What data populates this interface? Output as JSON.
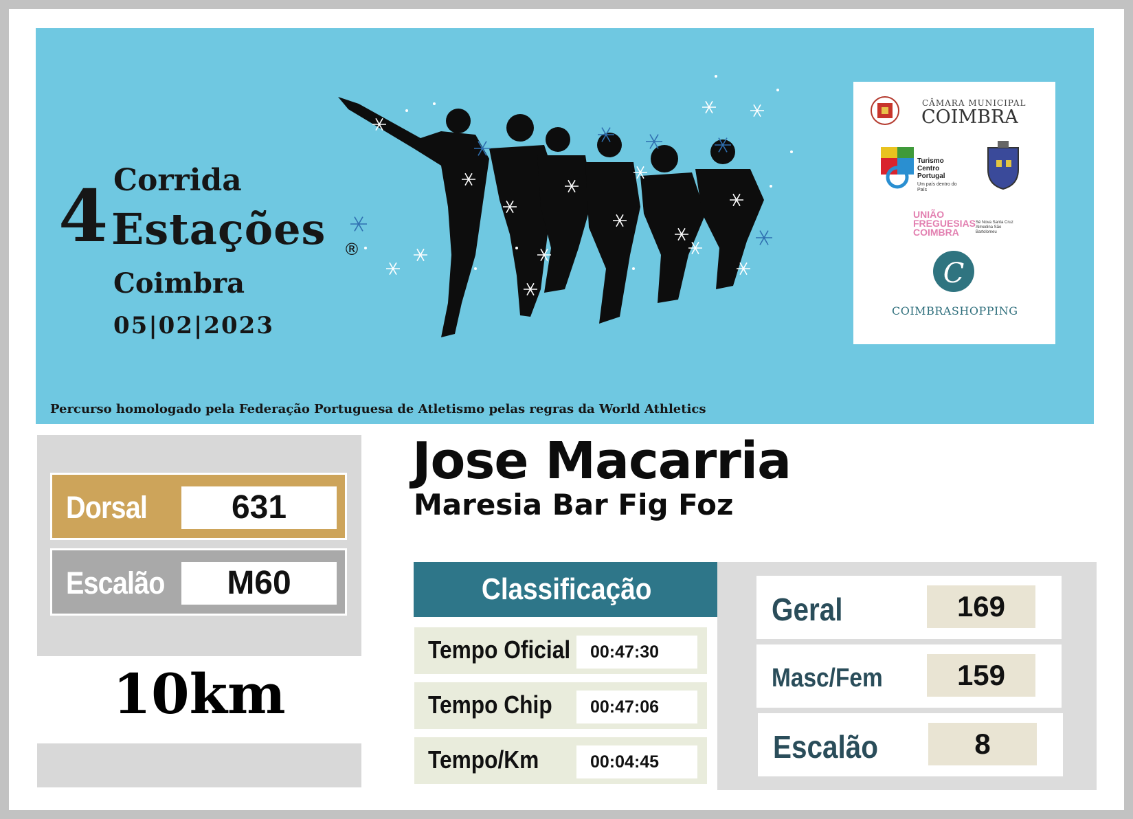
{
  "event": {
    "title_top": "Corrida",
    "title_number": "4",
    "title_main": "Estações",
    "registered_mark": "®",
    "city": "Coimbra",
    "date": "05|02|2023",
    "homologation": "Percurso homologado pela Federação Portuguesa de Atletismo pelas regras da World Athletics"
  },
  "sponsors": {
    "camara_title": "CÂMARA MUNICIPAL",
    "camara_city": "COIMBRA",
    "turismo": "Turismo Centro Portugal",
    "turismo_sub": "Um país dentro do País",
    "uniao": "UNIÃO FREGUESIAS COIMBRA",
    "uniao_sub": "Sé Nova Santa Cruz Almedina São Bartolomeu",
    "shopping": "COIMBRASHOPPING"
  },
  "bib": {
    "label": "Dorsal",
    "value": "631"
  },
  "category": {
    "label": "Escalão",
    "value": "M60"
  },
  "distance": "10km",
  "athlete": {
    "name": "Jose Macarria",
    "team": "Maresia Bar Fig Foz"
  },
  "classification": {
    "header": "Classificação",
    "times": [
      {
        "label": "Tempo Oficial",
        "value": "00:47:30"
      },
      {
        "label": "Tempo Chip",
        "value": "00:47:06"
      },
      {
        "label": "Tempo/Km",
        "value": "00:04:45"
      }
    ],
    "ranks": [
      {
        "label": "Geral",
        "value": "169"
      },
      {
        "label": "Masc/Fem",
        "value": "159"
      },
      {
        "label": "Escalão",
        "value": "8"
      }
    ]
  },
  "colors": {
    "banner_bg": "#6fc8e1",
    "bib_gold": "#cda45a",
    "category_grey": "#a9a9a9",
    "header_teal": "#2e7689",
    "rank_text": "#2a4d5a"
  }
}
